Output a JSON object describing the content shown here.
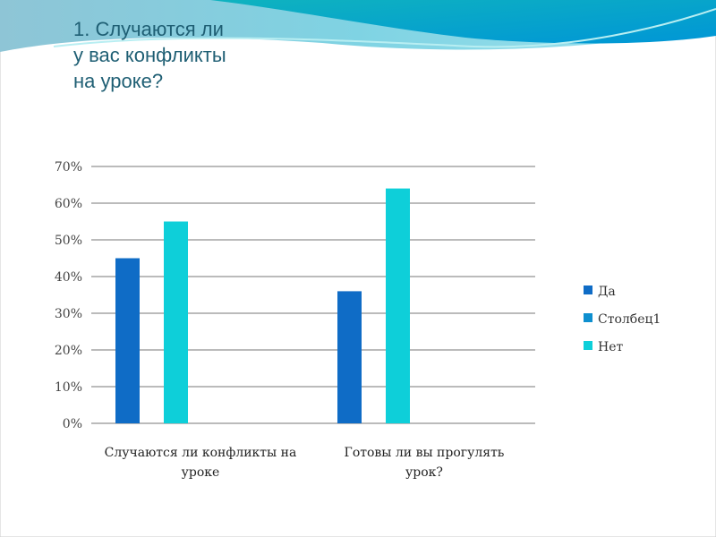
{
  "slide_title": [
    "1. Случаются ли",
    "у вас конфликты",
    "на уроке?"
  ],
  "chart_data": {
    "type": "bar",
    "categories": [
      [
        "Случаются ли конфликты на",
        "уроке"
      ],
      [
        "Готовы ли вы прогулять",
        "урок?"
      ]
    ],
    "series": [
      {
        "name": "Да",
        "values": [
          45,
          36
        ],
        "color": "#0f6cc6"
      },
      {
        "name": "Столбец1",
        "values": [
          0,
          0
        ],
        "color": "#0e8fcf"
      },
      {
        "name": "Нет",
        "values": [
          55,
          64
        ],
        "color": "#0ecfd9"
      }
    ],
    "ylim": [
      0,
      70
    ],
    "yticks": [
      0,
      10,
      20,
      30,
      40,
      50,
      60,
      70
    ],
    "ytick_format": "%",
    "grid": true,
    "legend": "right",
    "title": "",
    "xlabel": "",
    "ylabel": ""
  }
}
